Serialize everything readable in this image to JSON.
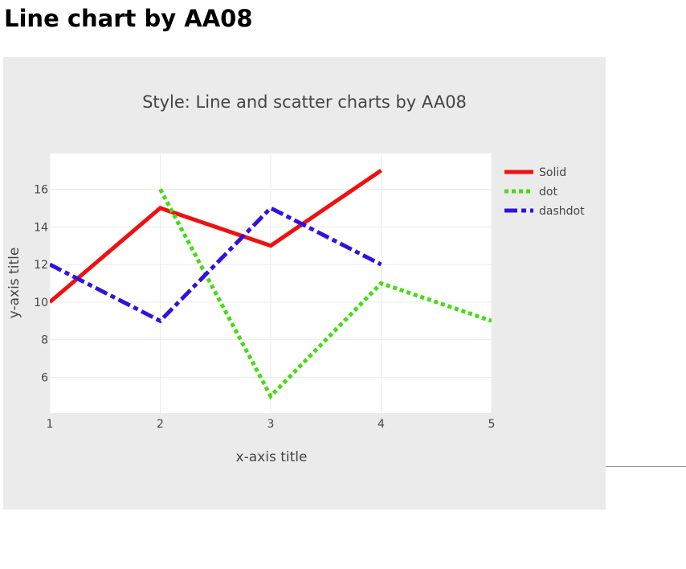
{
  "page": {
    "heading": "Line chart by AA08"
  },
  "chart_data": {
    "type": "line",
    "title": "Style: Line and scatter charts by AA08",
    "xlabel": "x-axis title",
    "ylabel": "y-axis title",
    "xlim": [
      1,
      5
    ],
    "ylim": [
      4.1,
      17.9
    ],
    "xticks": [
      1,
      2,
      3,
      4,
      5
    ],
    "yticks": [
      6,
      8,
      10,
      12,
      14,
      16
    ],
    "grid": true,
    "legend_position": "top-right",
    "series": [
      {
        "name": "Solid",
        "dash": "solid",
        "color": "#ee1111",
        "x": [
          1,
          2,
          3,
          4
        ],
        "y": [
          10,
          15,
          13,
          17
        ]
      },
      {
        "name": "dot",
        "dash": "dot",
        "color": "#44dd11",
        "x": [
          2,
          3,
          4,
          5
        ],
        "y": [
          16,
          5,
          11,
          9
        ]
      },
      {
        "name": "dashdot",
        "dash": "dashdot",
        "color": "#3311dd",
        "x": [
          1,
          2,
          3,
          4
        ],
        "y": [
          12,
          9,
          15,
          12
        ]
      }
    ]
  }
}
